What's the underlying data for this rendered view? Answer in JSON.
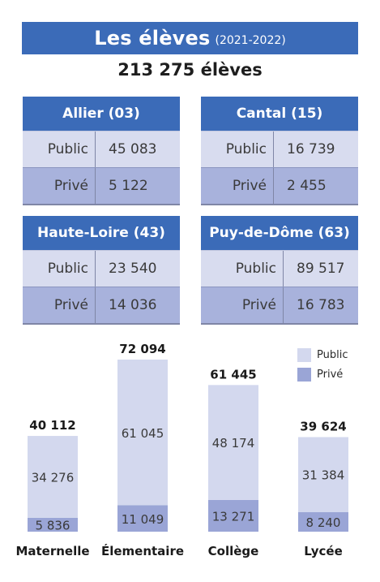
{
  "header": {
    "title": "Les élèves",
    "period": "(2021-2022)",
    "total": "213 275 élèves"
  },
  "departments": [
    {
      "name": "Allier (03)",
      "public_label": "Public",
      "public_value": "45 083",
      "prive_label": "Privé",
      "prive_value": "5 122"
    },
    {
      "name": "Cantal (15)",
      "public_label": "Public",
      "public_value": "16 739",
      "prive_label": "Privé",
      "prive_value": "2 455"
    },
    {
      "name": "Haute-Loire (43)",
      "public_label": "Public",
      "public_value": "23 540",
      "prive_label": "Privé",
      "prive_value": "14 036"
    },
    {
      "name": "Puy-de-Dôme (63)",
      "public_label": "Public",
      "public_value": "89 517",
      "prive_label": "Privé",
      "prive_value": "16 783"
    }
  ],
  "legend": {
    "public": "Public",
    "prive": "Privé"
  },
  "colors": {
    "header_blue": "#3b6bb8",
    "public": "#d3d8ee",
    "prive": "#9aa5d6"
  },
  "chart_data": {
    "type": "bar",
    "stacked": true,
    "categories": [
      "Maternelle",
      "Élementaire",
      "Collège",
      "Lycée"
    ],
    "series": [
      {
        "name": "Privé",
        "values": [
          5836,
          11049,
          13271,
          8240
        ],
        "labels": [
          "5 836",
          "11 049",
          "13 271",
          "8 240"
        ]
      },
      {
        "name": "Public",
        "values": [
          34276,
          61045,
          48174,
          31384
        ],
        "labels": [
          "34 276",
          "61 045",
          "48 174",
          "31 384"
        ]
      }
    ],
    "totals": [
      40112,
      72094,
      61445,
      39624
    ],
    "total_labels": [
      "40 112",
      "72 094",
      "61 445",
      "39 624"
    ],
    "legend_position": "top-right",
    "grid": false,
    "ylim": [
      0,
      75000
    ]
  }
}
